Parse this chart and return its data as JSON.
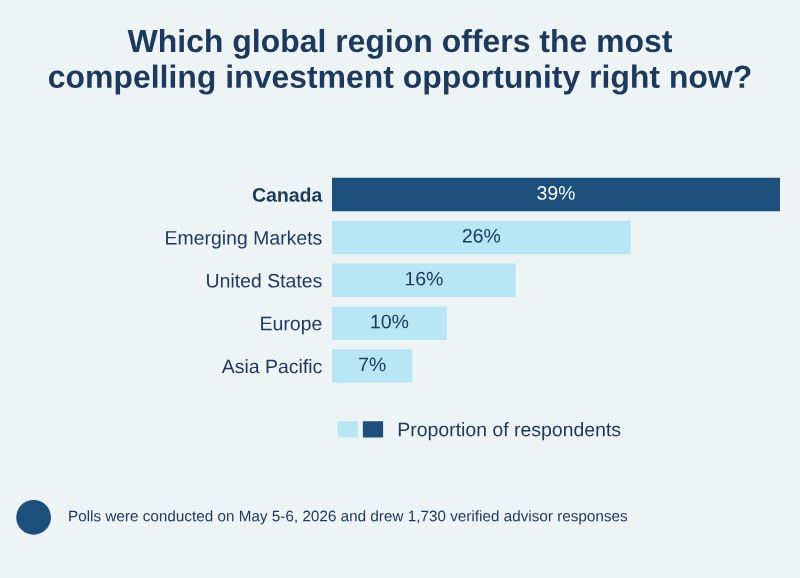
{
  "chart_data": {
    "type": "bar",
    "orientation": "horizontal",
    "title": "Which global region offers the most\ncompelling investment opportunity right now?",
    "categories": [
      "Canada",
      "Emerging Markets",
      "United States",
      "Europe",
      "Asia Pacific"
    ],
    "series": [
      {
        "name": "Proportion of respondents",
        "colors": [
          "#1d4f7c",
          "#b8e6f4",
          "#b8e6f4",
          "#b8e6f4",
          "#b8e6f4"
        ],
        "values": [
          39,
          26,
          16,
          10,
          7
        ],
        "value_labels": [
          "39%",
          "26%",
          "16%",
          "10%",
          "7%"
        ]
      }
    ],
    "legend": "bottom",
    "grid": false,
    "annotations": [
      "Polls were conducted on May 5-6, 2026 and drew 1,730 verified advisor responses"
    ]
  }
}
